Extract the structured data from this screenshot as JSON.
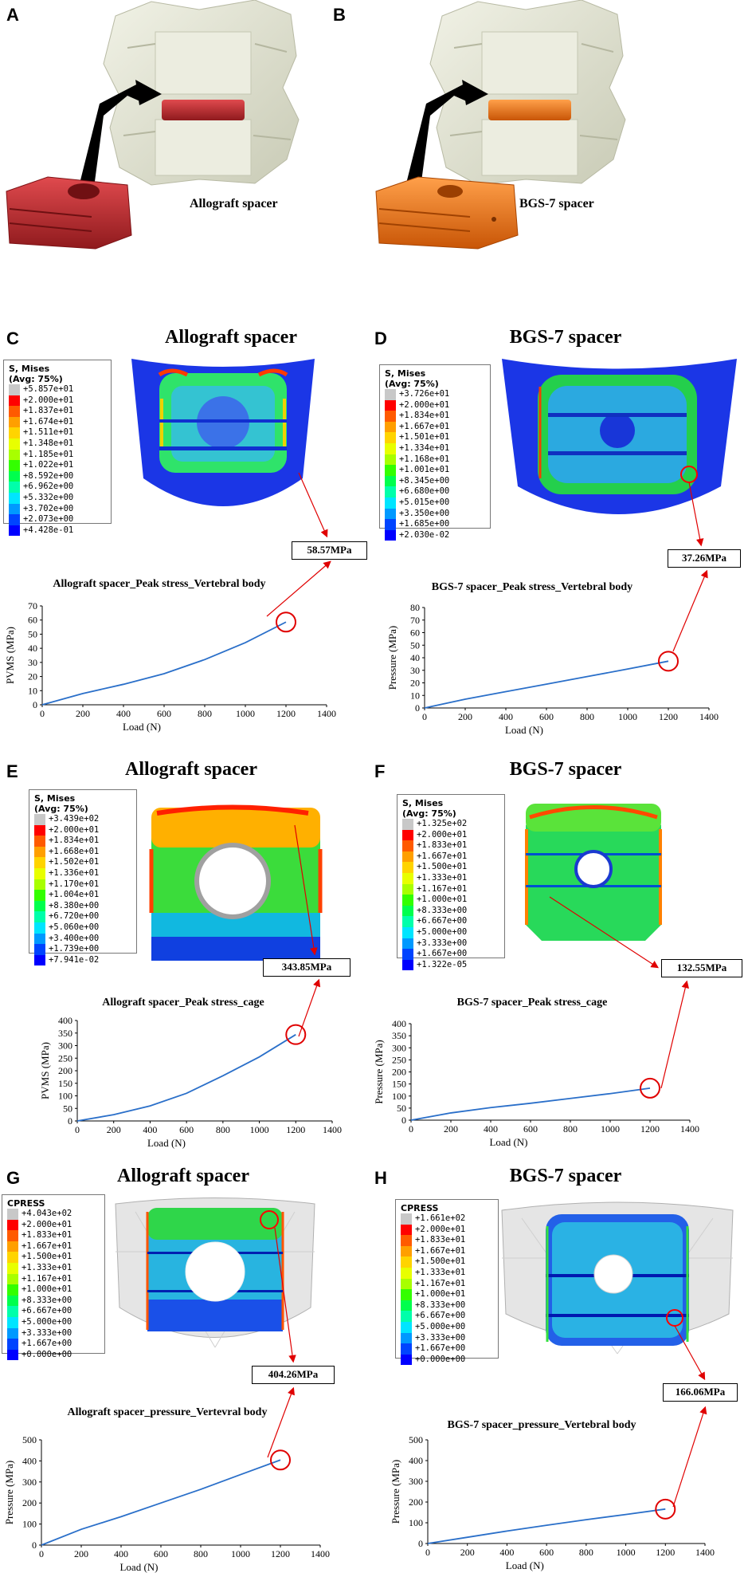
{
  "panels": {
    "A": {
      "letter": "A",
      "spacer_label": "Allograft spacer",
      "spacer_color": "#c0282d"
    },
    "B": {
      "letter": "B",
      "spacer_label": "BGS-7 spacer",
      "spacer_color": "#ef7014"
    },
    "C": {
      "letter": "C",
      "title": "Allograft spacer",
      "legend": {
        "header1": "S, Mises",
        "header2": "(Avg: 75%)",
        "values": [
          "+5.857e+01",
          "+2.000e+01",
          "+1.837e+01",
          "+1.674e+01",
          "+1.511e+01",
          "+1.348e+01",
          "+1.185e+01",
          "+1.022e+01",
          "+8.592e+00",
          "+6.962e+00",
          "+5.332e+00",
          "+3.702e+00",
          "+2.073e+00",
          "+4.428e-01"
        ]
      },
      "callout": "58.57MPa"
    },
    "D": {
      "letter": "D",
      "title": "BGS-7 spacer",
      "legend": {
        "header1": "S, Mises",
        "header2": "(Avg: 75%)",
        "values": [
          "+3.726e+01",
          "+2.000e+01",
          "+1.834e+01",
          "+1.667e+01",
          "+1.501e+01",
          "+1.334e+01",
          "+1.168e+01",
          "+1.001e+01",
          "+8.345e+00",
          "+6.680e+00",
          "+5.015e+00",
          "+3.350e+00",
          "+1.685e+00",
          "+2.030e-02"
        ]
      },
      "callout": "37.26MPa"
    },
    "E": {
      "letter": "E",
      "title": "Allograft spacer",
      "legend": {
        "header1": "S, Mises",
        "header2": "(Avg: 75%)",
        "values": [
          "+3.439e+02",
          "+2.000e+01",
          "+1.834e+01",
          "+1.668e+01",
          "+1.502e+01",
          "+1.336e+01",
          "+1.170e+01",
          "+1.004e+01",
          "+8.380e+00",
          "+6.720e+00",
          "+5.060e+00",
          "+3.400e+00",
          "+1.739e+00",
          "+7.941e-02"
        ]
      },
      "callout": "343.85MPa"
    },
    "F": {
      "letter": "F",
      "title": "BGS-7 spacer",
      "legend": {
        "header1": "S, Mises",
        "header2": "(Avg: 75%)",
        "values": [
          "+1.325e+02",
          "+2.000e+01",
          "+1.833e+01",
          "+1.667e+01",
          "+1.500e+01",
          "+1.333e+01",
          "+1.167e+01",
          "+1.000e+01",
          "+8.333e+00",
          "+6.667e+00",
          "+5.000e+00",
          "+3.333e+00",
          "+1.667e+00",
          "+1.322e-05"
        ]
      },
      "callout": "132.55MPa"
    },
    "G": {
      "letter": "G",
      "title": "Allograft spacer",
      "legend": {
        "header1": "CPRESS",
        "header2": "",
        "values": [
          "+4.043e+02",
          "+2.000e+01",
          "+1.833e+01",
          "+1.667e+01",
          "+1.500e+01",
          "+1.333e+01",
          "+1.167e+01",
          "+1.000e+01",
          "+8.333e+00",
          "+6.667e+00",
          "+5.000e+00",
          "+3.333e+00",
          "+1.667e+00",
          "+0.000e+00"
        ]
      },
      "callout": "404.26MPa"
    },
    "H": {
      "letter": "H",
      "title": "BGS-7 spacer",
      "legend": {
        "header1": "CPRESS",
        "header2": "",
        "values": [
          "+1.661e+02",
          "+2.000e+01",
          "+1.833e+01",
          "+1.667e+01",
          "+1.500e+01",
          "+1.333e+01",
          "+1.167e+01",
          "+1.000e+01",
          "+8.333e+00",
          "+6.667e+00",
          "+5.000e+00",
          "+3.333e+00",
          "+1.667e+00",
          "+0.000e+00"
        ]
      },
      "callout": "166.06MPa"
    }
  },
  "legend_colors": [
    "#c8c8c8",
    "#ff0000",
    "#ff5a00",
    "#ff9f00",
    "#ffd400",
    "#e8ff00",
    "#a8ff00",
    "#33ff00",
    "#00ff4d",
    "#00ffaa",
    "#00e5ff",
    "#0099ff",
    "#0044ff",
    "#0000ff"
  ],
  "chart_data": [
    {
      "id": "C",
      "type": "line",
      "title": "Allograft spacer_Peak stress_Vertebral body",
      "xlabel": "Load (N)",
      "ylabel": "PVMS (MPa)",
      "xlim": [
        0,
        1400
      ],
      "ylim": [
        0,
        70
      ],
      "xticks": [
        0,
        200,
        400,
        600,
        800,
        1000,
        1200,
        1400
      ],
      "yticks": [
        0,
        10,
        20,
        30,
        40,
        50,
        60,
        70
      ],
      "x": [
        0,
        200,
        400,
        600,
        800,
        1000,
        1200
      ],
      "y": [
        0,
        8,
        14.5,
        22,
        32,
        44,
        58.57
      ],
      "peak": {
        "x": 1200,
        "y": 58.57
      }
    },
    {
      "id": "D",
      "type": "line",
      "title": "BGS-7 spacer_Peak stress_Vertebral body",
      "xlabel": "Load (N)",
      "ylabel": "Pressure (MPa)",
      "xlim": [
        0,
        1400
      ],
      "ylim": [
        0,
        80
      ],
      "xticks": [
        0,
        200,
        400,
        600,
        800,
        1000,
        1200,
        1400
      ],
      "yticks": [
        0,
        10,
        20,
        30,
        40,
        50,
        60,
        70,
        80
      ],
      "x": [
        0,
        200,
        400,
        600,
        800,
        1000,
        1200
      ],
      "y": [
        0,
        7,
        13,
        19,
        25,
        31,
        37.26
      ],
      "peak": {
        "x": 1200,
        "y": 37.26
      }
    },
    {
      "id": "E",
      "type": "line",
      "title": "Allograft spacer_Peak stress_cage",
      "xlabel": "Load (N)",
      "ylabel": "PVMS (MPa)",
      "xlim": [
        0,
        1400
      ],
      "ylim": [
        0,
        400
      ],
      "xticks": [
        0,
        200,
        400,
        600,
        800,
        1000,
        1200,
        1400
      ],
      "yticks": [
        0,
        50,
        100,
        150,
        200,
        250,
        300,
        350,
        400
      ],
      "x": [
        0,
        200,
        400,
        600,
        800,
        1000,
        1200
      ],
      "y": [
        0,
        25,
        60,
        110,
        180,
        255,
        343.85
      ],
      "peak": {
        "x": 1200,
        "y": 343.85
      }
    },
    {
      "id": "F",
      "type": "line",
      "title": "BGS-7 spacer_Peak stress_cage",
      "xlabel": "Load (N)",
      "ylabel": "Pressure (MPa)",
      "xlim": [
        0,
        1400
      ],
      "ylim": [
        0,
        400
      ],
      "xticks": [
        0,
        200,
        400,
        600,
        800,
        1000,
        1200,
        1400
      ],
      "yticks": [
        0,
        50,
        100,
        150,
        200,
        250,
        300,
        350,
        400
      ],
      "x": [
        0,
        200,
        400,
        600,
        800,
        1000,
        1200
      ],
      "y": [
        0,
        30,
        52,
        70,
        90,
        110,
        132.55
      ],
      "peak": {
        "x": 1200,
        "y": 132.55
      }
    },
    {
      "id": "G",
      "type": "line",
      "title": "Allograft spacer_pressure_Vertevral body",
      "xlabel": "Load (N)",
      "ylabel": "Pressure (MPa)",
      "xlim": [
        0,
        1400
      ],
      "ylim": [
        0,
        500
      ],
      "xticks": [
        0,
        200,
        400,
        600,
        800,
        1000,
        1200,
        1400
      ],
      "yticks": [
        0,
        100,
        200,
        300,
        400,
        500
      ],
      "x": [
        0,
        200,
        400,
        600,
        800,
        1000,
        1200
      ],
      "y": [
        0,
        75,
        135,
        200,
        265,
        335,
        404.26
      ],
      "peak": {
        "x": 1200,
        "y": 404.26
      }
    },
    {
      "id": "H",
      "type": "line",
      "title": "BGS-7 spacer_pressure_Vertebral body",
      "xlabel": "Load (N)",
      "ylabel": "Pressure (MPa)",
      "xlim": [
        0,
        1400
      ],
      "ylim": [
        0,
        500
      ],
      "xticks": [
        0,
        200,
        400,
        600,
        800,
        1000,
        1200,
        1400
      ],
      "yticks": [
        0,
        100,
        200,
        300,
        400,
        500
      ],
      "x": [
        0,
        200,
        400,
        600,
        800,
        1000,
        1200
      ],
      "y": [
        0,
        30,
        60,
        88,
        115,
        140,
        166.06
      ],
      "peak": {
        "x": 1200,
        "y": 166.06
      }
    }
  ]
}
